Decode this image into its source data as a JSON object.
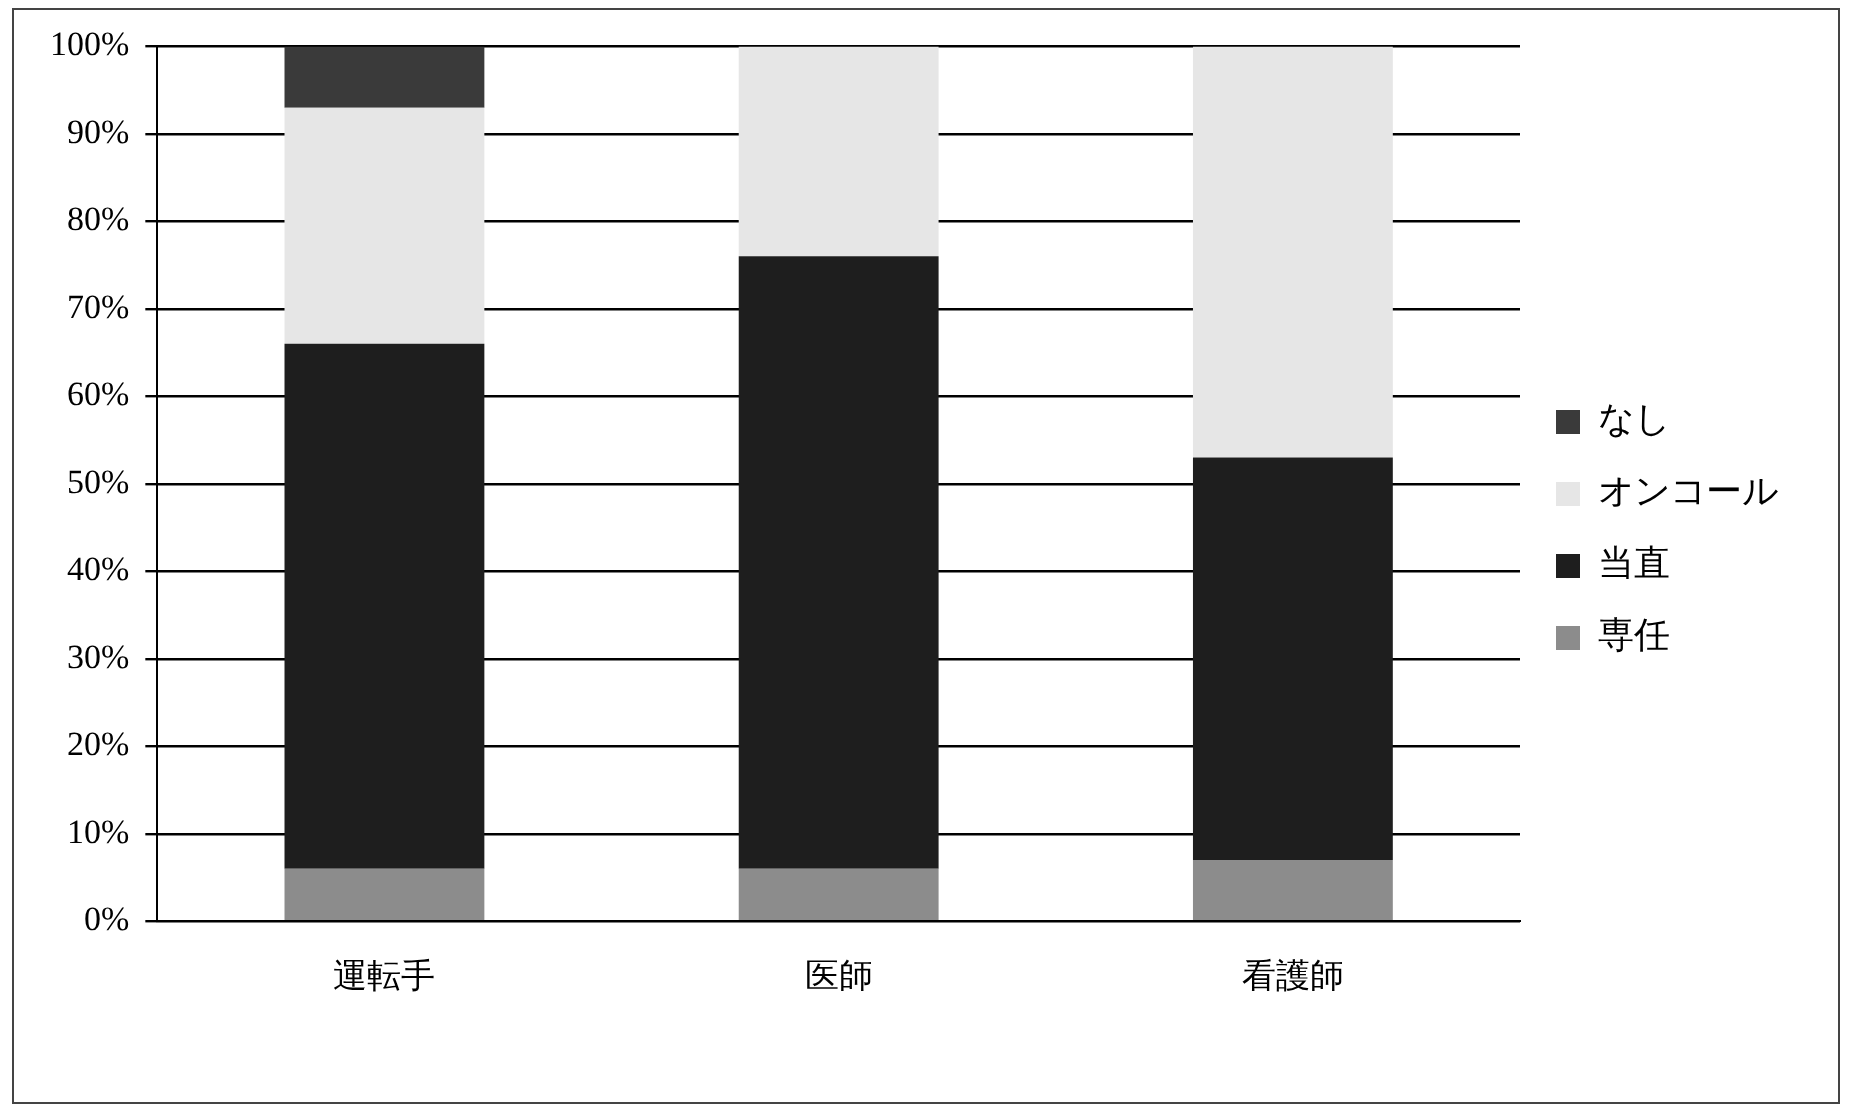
{
  "chart_data": {
    "type": "bar",
    "stacked": true,
    "categories": [
      "運転手",
      "医師",
      "看護師"
    ],
    "series": [
      {
        "name": "専任",
        "color": "#8c8c8c",
        "values": [
          6,
          6,
          7
        ]
      },
      {
        "name": "当直",
        "color": "#1e1e1e",
        "values": [
          60,
          70,
          46
        ]
      },
      {
        "name": "オンコール",
        "color": "#e6e6e6",
        "values": [
          27,
          24,
          47
        ]
      },
      {
        "name": "なし",
        "color": "#3a3a3a",
        "values": [
          7,
          0,
          0
        ]
      }
    ],
    "ylim": [
      0,
      100
    ],
    "yticks": [
      {
        "value": 0,
        "label": "0%"
      },
      {
        "value": 10,
        "label": "10%"
      },
      {
        "value": 20,
        "label": "20%"
      },
      {
        "value": 30,
        "label": "30%"
      },
      {
        "value": 40,
        "label": "40%"
      },
      {
        "value": 50,
        "label": "50%"
      },
      {
        "value": 60,
        "label": "60%"
      },
      {
        "value": 70,
        "label": "70%"
      },
      {
        "value": 80,
        "label": "80%"
      },
      {
        "value": 90,
        "label": "90%"
      },
      {
        "value": 100,
        "label": "100%"
      }
    ],
    "grid": "y",
    "legend": "right"
  }
}
